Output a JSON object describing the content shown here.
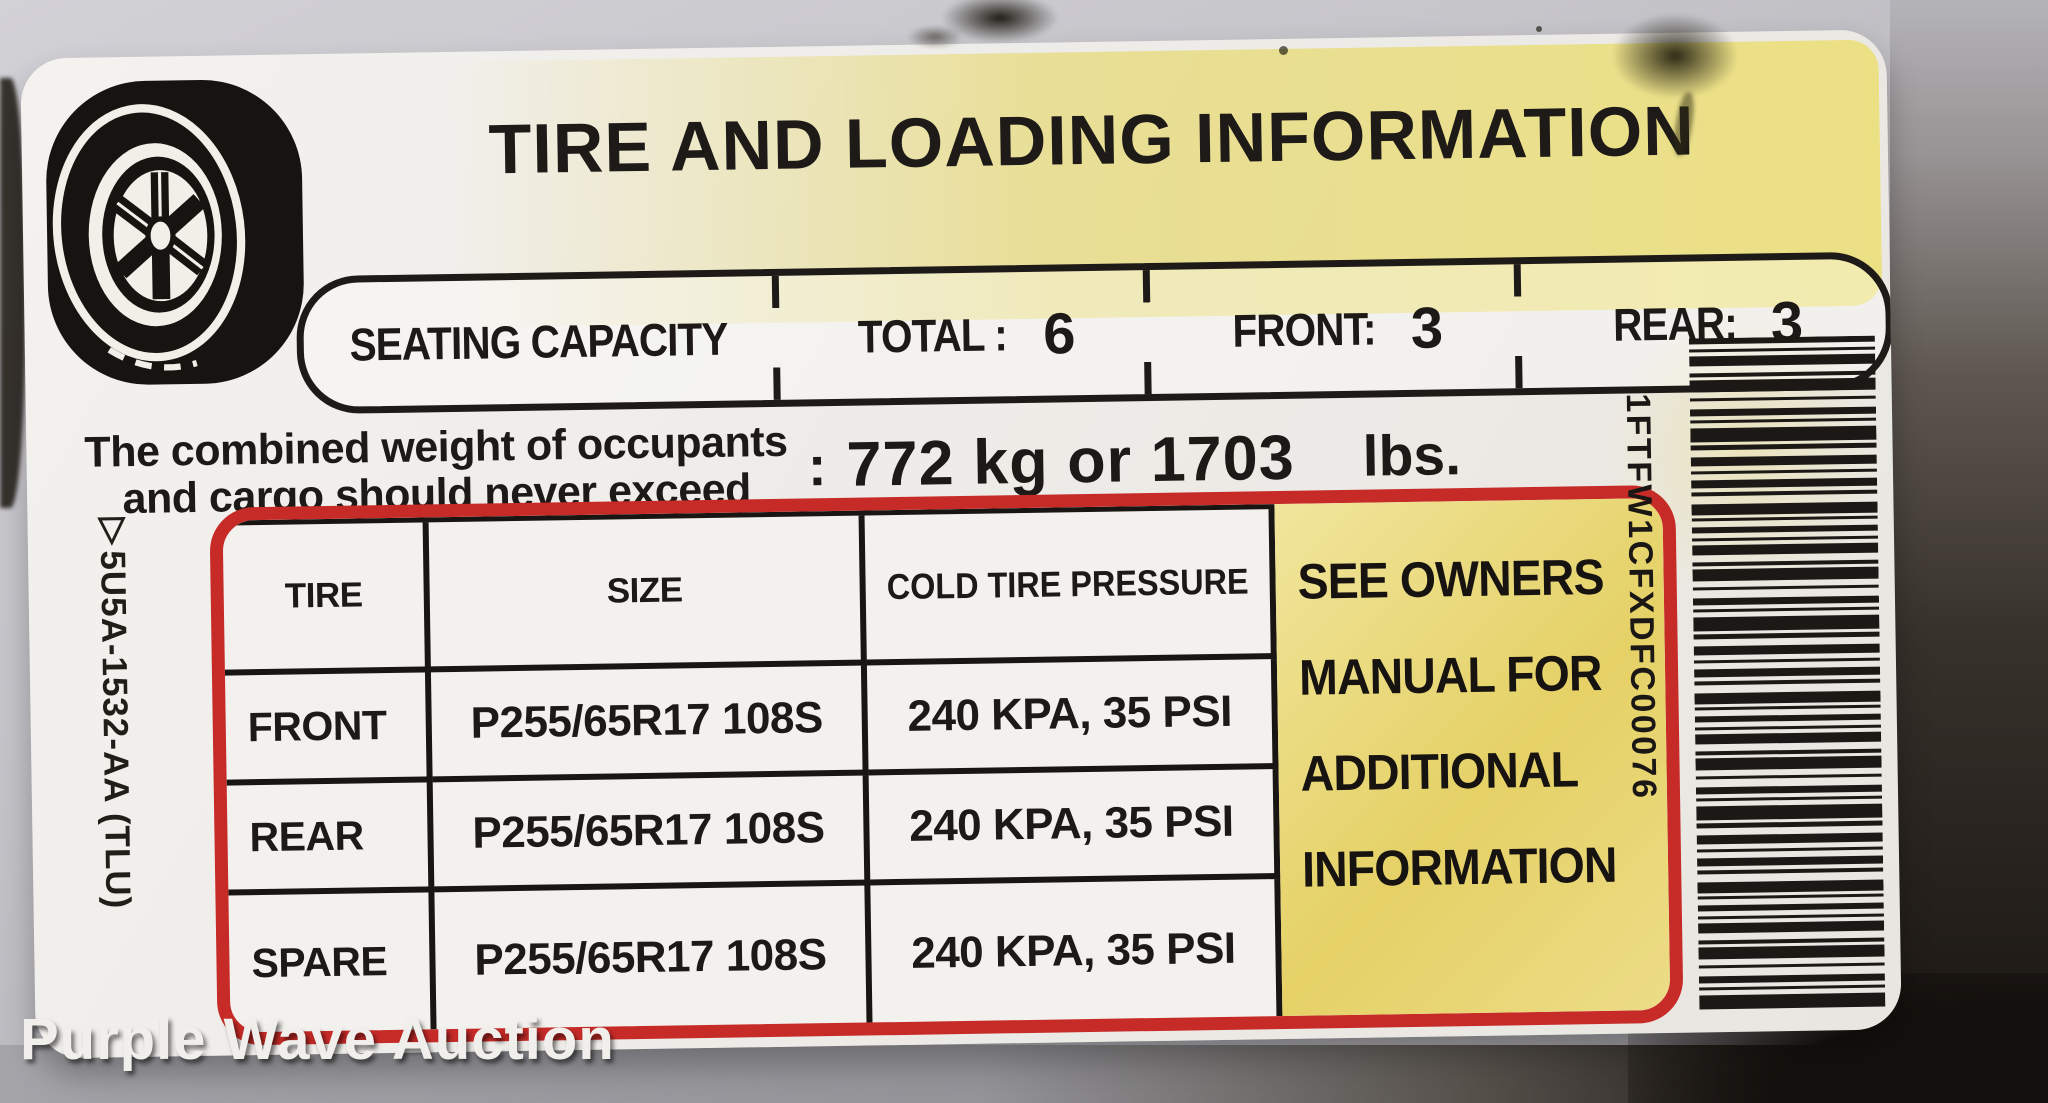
{
  "watermark": "Purple Wave Auction",
  "label": {
    "title": "TIRE AND LOADING INFORMATION",
    "seating": {
      "heading": "SEATING CAPACITY",
      "total_label": "TOTAL :",
      "total_value": "6",
      "front_label": "FRONT:",
      "front_value": "3",
      "rear_label": "REAR:",
      "rear_value": "3"
    },
    "weight_note": {
      "line1": "The combined weight of occupants",
      "line2": "and cargo should never exceed",
      "colon": ":",
      "value": "772 kg or 1703",
      "unit": "lbs."
    },
    "tire_table": {
      "headers": [
        "TIRE",
        "SIZE",
        "COLD TIRE PRESSURE"
      ],
      "rows": [
        {
          "tire": "FRONT",
          "size": "P255/65R17 108S",
          "pressure": "240 KPA, 35 PSI"
        },
        {
          "tire": "REAR",
          "size": "P255/65R17 108S",
          "pressure": "240 KPA, 35 PSI"
        },
        {
          "tire": "SPARE",
          "size": "P255/65R17 108S",
          "pressure": "240 KPA, 35 PSI"
        }
      ]
    },
    "owners_note": {
      "lines": [
        "SEE OWNERS",
        "MANUAL FOR",
        "ADDITIONAL",
        "INFORMATION"
      ]
    },
    "part_number": "▽5U5A-1532-AA (TLU)",
    "barcode_text": "1FTFW1CFXDFC00076",
    "colors": {
      "label_red": "#c62b28",
      "note_yellow": "#e5d166",
      "band_yellow": "#e8dc85"
    }
  }
}
